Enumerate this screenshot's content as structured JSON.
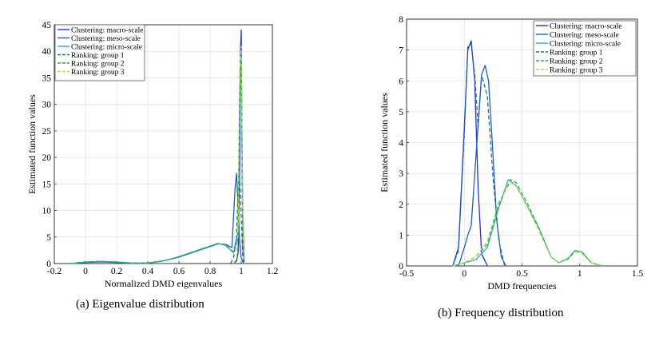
{
  "captions": {
    "a": "(a) Eigenvalue distribution",
    "b": "(b) Frequency distribution"
  },
  "chart_data": [
    {
      "type": "line",
      "subplot": "a",
      "xlabel": "Normalized DMD eigenvalues",
      "ylabel": "Estimated function values",
      "xlim": [
        -0.2,
        1.2
      ],
      "ylim": [
        0,
        45
      ],
      "xticks": [
        "-0.2",
        "0",
        "0.2",
        "0.4",
        "0.6",
        "0.8",
        "1",
        "1.2"
      ],
      "yticks": [
        "0",
        "5",
        "10",
        "15",
        "20",
        "25",
        "30",
        "35",
        "40",
        "45"
      ],
      "grid": true,
      "legend_position": "top-left",
      "series": [
        {
          "name": "Clustering: macro-scale",
          "color": "#1f33e0",
          "dash": "solid",
          "x": [
            0.95,
            0.97,
            0.98,
            0.99,
            0.995,
            1.0,
            1.005,
            1.01,
            1.02
          ],
          "y": [
            0,
            0.5,
            2,
            18,
            40,
            44,
            22,
            3,
            0
          ]
        },
        {
          "name": "Clustering: meso-scale",
          "color": "#1d5fc4",
          "dash": "solid",
          "x": [
            -0.1,
            0.0,
            0.1,
            0.2,
            0.3,
            0.4,
            0.5,
            0.6,
            0.7,
            0.8,
            0.85,
            0.9,
            0.94,
            0.96,
            0.97,
            0.98,
            0.99,
            1.0,
            1.01,
            1.02
          ],
          "y": [
            0,
            0.2,
            0.3,
            0.2,
            0.05,
            0.1,
            0.5,
            1.2,
            2.2,
            3.2,
            3.7,
            3.6,
            3,
            14,
            17,
            11,
            4,
            1,
            0.3,
            0
          ],
          "peak": 17
        },
        {
          "name": "Clustering: micro-scale",
          "color": "#2fb3a4",
          "dash": "solid",
          "x": [
            -0.1,
            0.0,
            0.1,
            0.2,
            0.3,
            0.4,
            0.5,
            0.6,
            0.7,
            0.8,
            0.85,
            0.9,
            0.95,
            0.98,
            0.99,
            1.0,
            1.01,
            1.02
          ],
          "y": [
            0,
            0.3,
            0.4,
            0.3,
            0.1,
            0.1,
            0.5,
            1.3,
            2.3,
            3.3,
            3.8,
            3.4,
            2,
            5,
            30,
            38,
            8,
            0
          ]
        },
        {
          "name": "Ranking: group 1",
          "color": "#1f6fa6",
          "dash": "dash",
          "x": [
            0.93,
            0.95,
            0.97,
            0.98,
            0.99,
            1.0,
            1.01,
            1.02
          ],
          "y": [
            0,
            1,
            5,
            14,
            16,
            9,
            1,
            0
          ]
        },
        {
          "name": "Ranking: group 2",
          "color": "#2fa860",
          "dash": "dash",
          "x": [
            -0.1,
            0.0,
            0.1,
            0.2,
            0.3,
            0.4,
            0.5,
            0.6,
            0.7,
            0.8,
            0.85,
            0.9,
            0.95,
            0.98,
            0.99,
            1.0,
            1.01,
            1.02
          ],
          "y": [
            0,
            0.3,
            0.4,
            0.3,
            0.1,
            0.1,
            0.5,
            1.3,
            2.3,
            3.3,
            3.8,
            3.5,
            2.2,
            6,
            32,
            40,
            9,
            0
          ]
        },
        {
          "name": "Ranking: group 3",
          "color": "#b6d94a",
          "dash": "dash",
          "x": [
            0.95,
            0.97,
            0.98,
            0.99,
            1.0,
            1.01,
            1.02
          ],
          "y": [
            0,
            1,
            6,
            36,
            41,
            6,
            0
          ]
        }
      ]
    },
    {
      "type": "line",
      "subplot": "b",
      "xlabel": "DMD frequencies",
      "ylabel": "Estimated function values",
      "xlim": [
        -0.5,
        1.5
      ],
      "ylim": [
        0,
        8
      ],
      "xticks": [
        "-0.5",
        "0",
        "0.5",
        "1",
        "1.5"
      ],
      "yticks": [
        "0",
        "1",
        "2",
        "3",
        "4",
        "5",
        "6",
        "7",
        "8"
      ],
      "grid": true,
      "legend_position": "top-right",
      "series": [
        {
          "name": "Clustering: macro-scale",
          "color": "#1f33e0",
          "dash": "solid",
          "x": [
            -0.1,
            -0.05,
            0.0,
            0.03,
            0.06,
            0.09,
            0.12,
            0.15,
            0.2
          ],
          "y": [
            0,
            0.6,
            4.5,
            7.0,
            7.3,
            6.0,
            2.5,
            0.4,
            0
          ]
        },
        {
          "name": "Clustering: meso-scale",
          "color": "#1d5fc4",
          "dash": "solid",
          "x": [
            -0.05,
            0.0,
            0.03,
            0.06,
            0.1,
            0.15,
            0.18,
            0.21,
            0.25,
            0.28,
            0.32,
            0.36
          ],
          "y": [
            0,
            0.6,
            1.0,
            1.3,
            3.5,
            6.2,
            6.5,
            6.0,
            3.5,
            1.5,
            0.3,
            0
          ]
        },
        {
          "name": "Clustering: micro-scale",
          "color": "#2fb3a4",
          "dash": "solid",
          "x": [
            -0.1,
            0.0,
            0.1,
            0.2,
            0.3,
            0.38,
            0.45,
            0.55,
            0.65,
            0.75,
            0.82,
            0.9,
            0.96,
            1.02,
            1.1,
            1.2
          ],
          "y": [
            0,
            0.1,
            0.2,
            0.6,
            1.9,
            2.8,
            2.6,
            1.9,
            1.2,
            0.3,
            0.1,
            0.25,
            0.5,
            0.45,
            0.1,
            0
          ]
        },
        {
          "name": "Ranking: group 1",
          "color": "#1f6fa6",
          "dash": "dash",
          "x": [
            -0.1,
            -0.05,
            0.0,
            0.03,
            0.06,
            0.09,
            0.12,
            0.15,
            0.2,
            0.25,
            0.3,
            0.35
          ],
          "y": [
            0,
            0.5,
            4.3,
            7.1,
            7.2,
            6.2,
            4.5,
            6.2,
            5.5,
            2.8,
            0.8,
            0
          ]
        },
        {
          "name": "Ranking: group 2",
          "color": "#2fa860",
          "dash": "dash",
          "x": [
            -0.1,
            0.0,
            0.1,
            0.2,
            0.3,
            0.4,
            0.45,
            0.55,
            0.65,
            0.75,
            0.82,
            0.9,
            0.96,
            1.02,
            1.1,
            1.2
          ],
          "y": [
            0,
            0.1,
            0.3,
            0.7,
            2.0,
            2.8,
            2.7,
            2.0,
            1.2,
            0.3,
            0.1,
            0.25,
            0.5,
            0.45,
            0.1,
            0
          ]
        },
        {
          "name": "Ranking: group 3",
          "color": "#b6d94a",
          "dash": "dash",
          "x": [
            -0.1,
            0.0,
            0.1,
            0.2,
            0.3,
            0.4,
            0.45,
            0.55,
            0.65,
            0.75,
            0.82,
            0.9,
            0.96,
            1.02,
            1.1,
            1.2
          ],
          "y": [
            0,
            0.1,
            0.3,
            0.8,
            2.1,
            2.7,
            2.6,
            1.9,
            1.1,
            0.3,
            0.1,
            0.2,
            0.45,
            0.4,
            0.1,
            0
          ]
        }
      ]
    }
  ]
}
